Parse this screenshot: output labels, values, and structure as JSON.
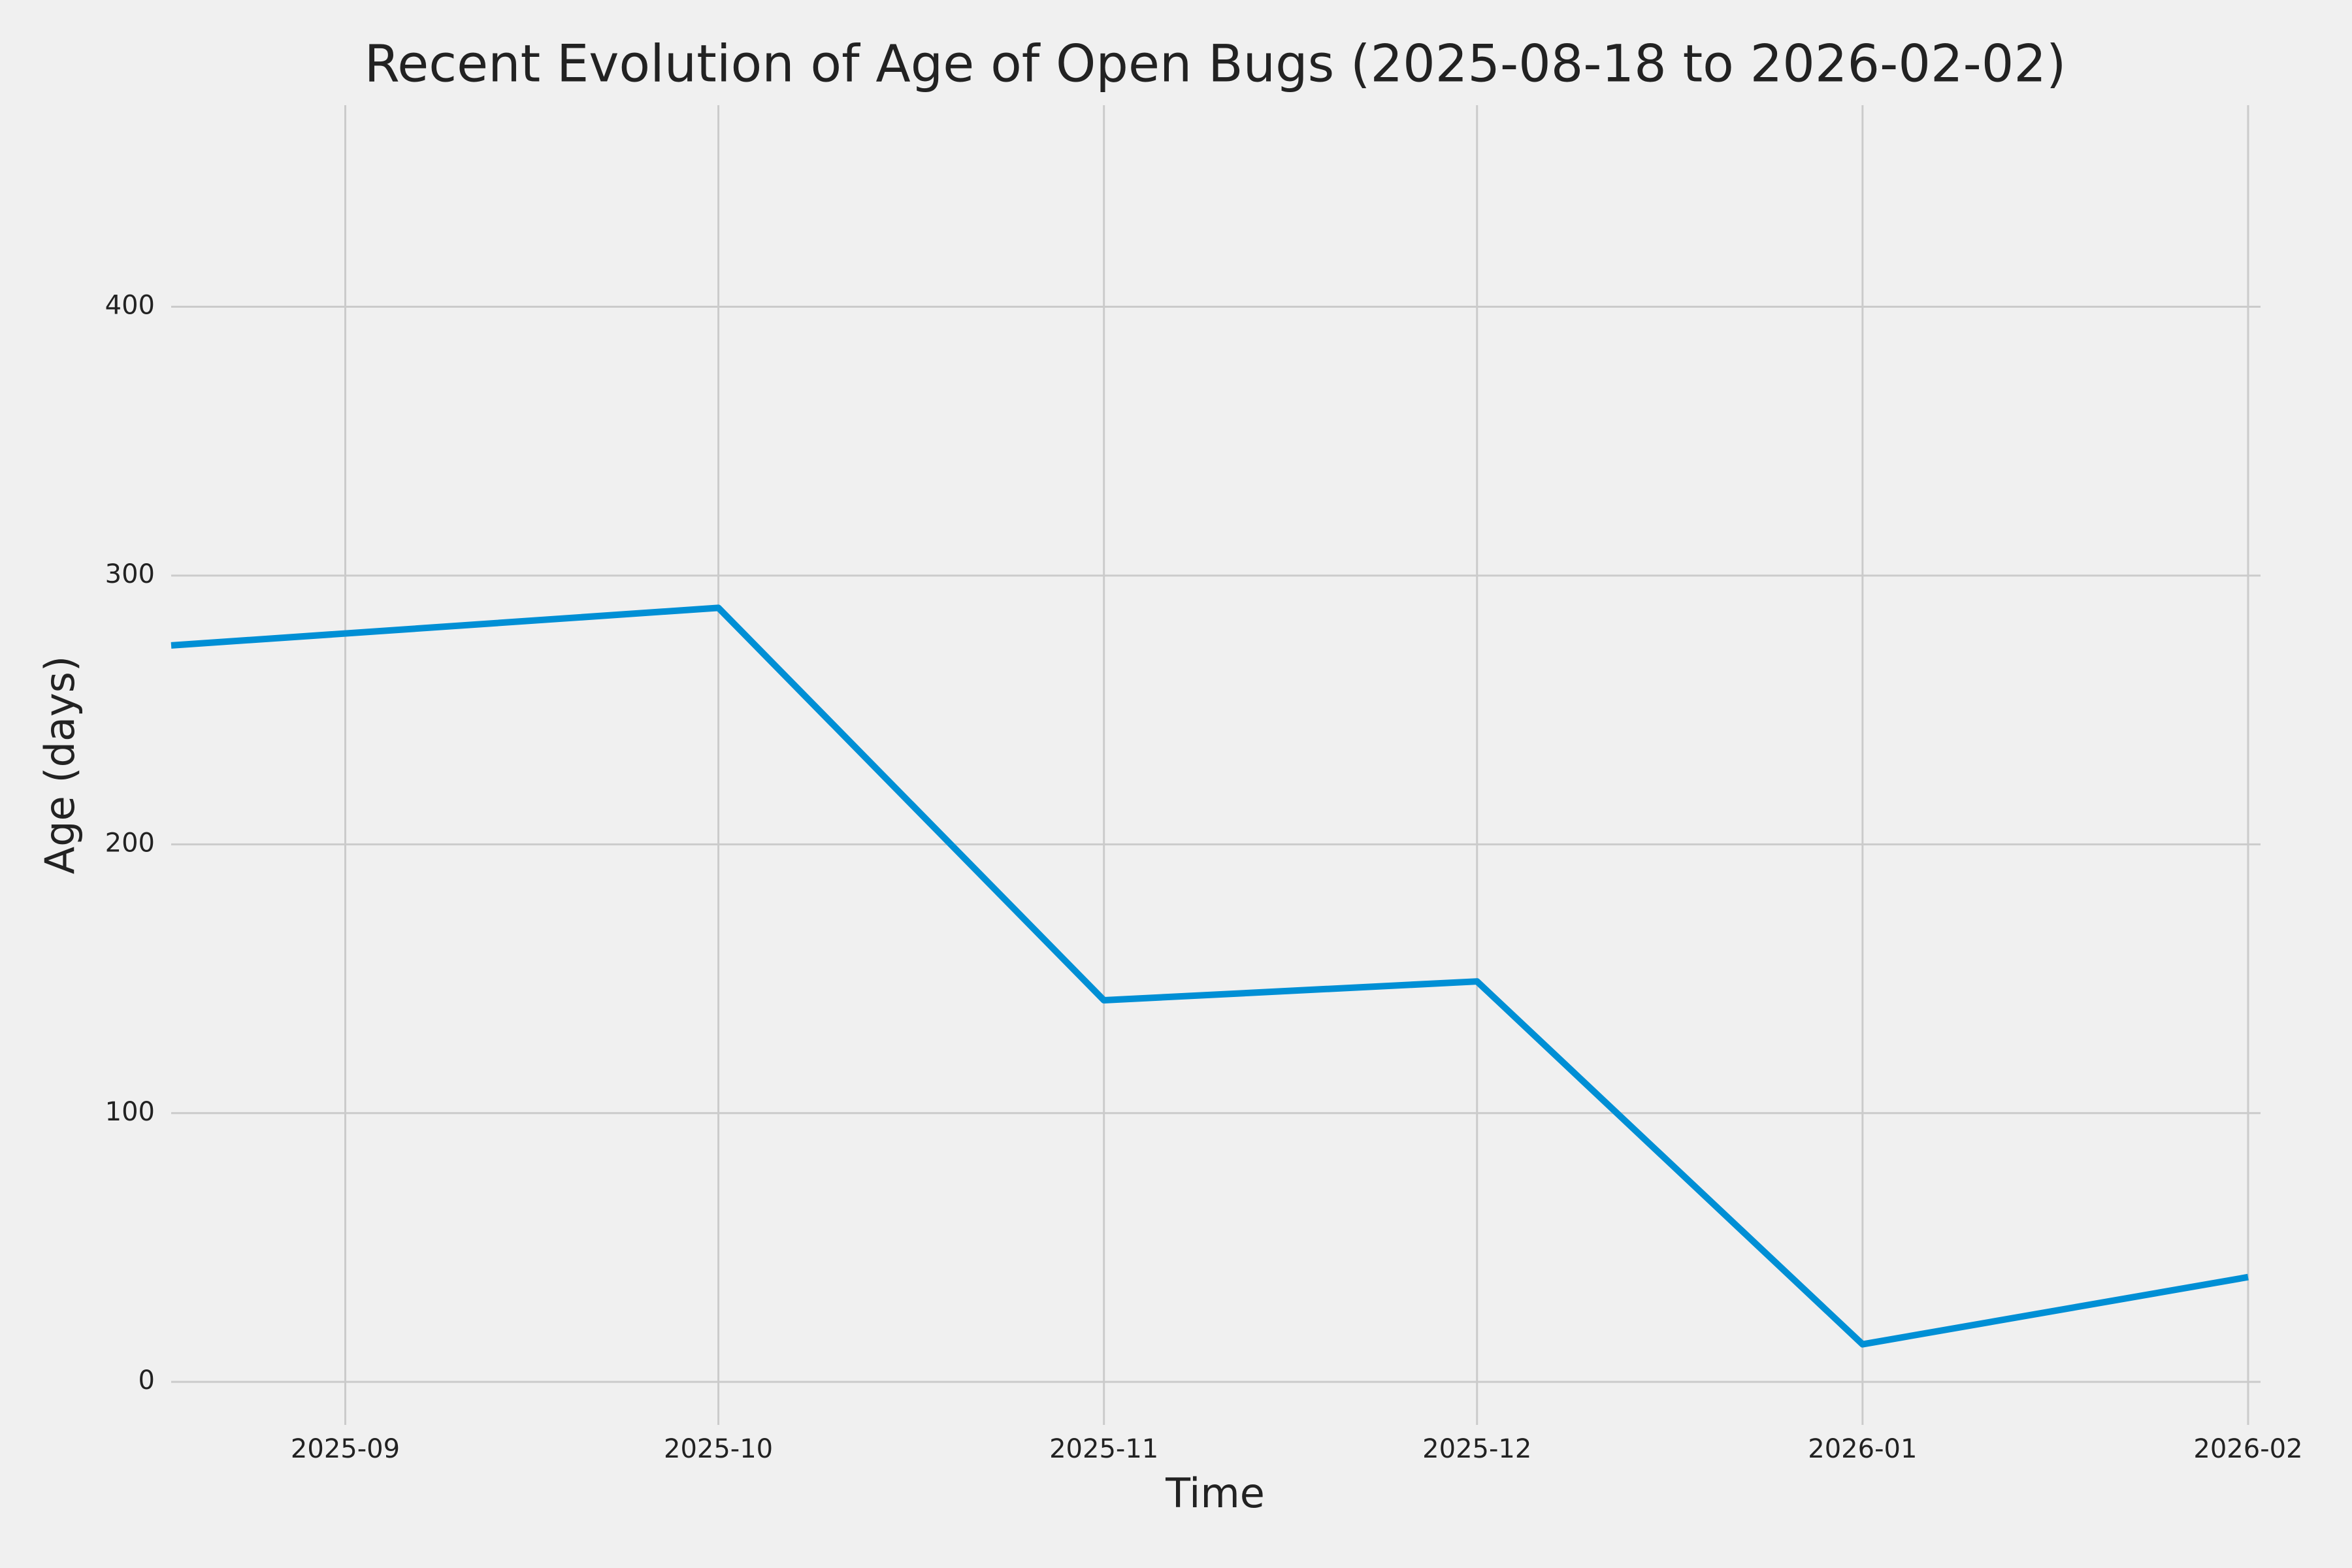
{
  "chart_data": {
    "type": "line",
    "title": "Recent Evolution of Age of Open Bugs (2025-08-18 to 2026-02-02)",
    "x_label": "Time",
    "y_label": "Age (days)",
    "x": [
      "2025-08-18",
      "2025-10-01",
      "2025-11-01",
      "2025-12-01",
      "2026-01-01",
      "2026-02-01"
    ],
    "values": [
      274,
      288,
      142,
      149,
      14,
      39
    ],
    "color": "#008fd5",
    "xlim": [
      "2025-08-18",
      "2026-02-02"
    ],
    "xticks": [
      {
        "value": "2025-09-01",
        "label": "2025-09"
      },
      {
        "value": "2025-10-01",
        "label": "2025-10"
      },
      {
        "value": "2025-11-01",
        "label": "2025-11"
      },
      {
        "value": "2025-12-01",
        "label": "2025-12"
      },
      {
        "value": "2026-01-01",
        "label": "2026-01"
      },
      {
        "value": "2026-02-01",
        "label": "2026-02"
      }
    ],
    "ylim": [
      -16,
      475
    ],
    "yticks": [
      0,
      100,
      200,
      300,
      400
    ],
    "grid": true
  }
}
